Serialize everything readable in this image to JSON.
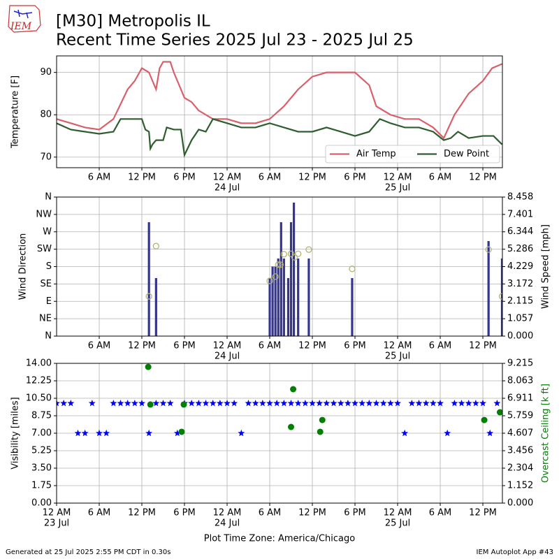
{
  "header": {
    "logo": "IEM",
    "title": "[M30] Metropolis  IL",
    "subtitle": "Recent Time Series 2025 Jul 23 - 2025 Jul 25"
  },
  "chart_data": [
    {
      "type": "line",
      "ylabel": "Temperature [F]",
      "xlim": [
        0,
        62.75
      ],
      "ylim": [
        67.5,
        93.9
      ],
      "yticks": [
        70,
        80,
        90
      ],
      "grid": true,
      "legend": "lower right",
      "xticks": [
        {
          "value": 6,
          "label": "6 AM"
        },
        {
          "value": 12,
          "label": "12 PM"
        },
        {
          "value": 18,
          "label": "6 PM"
        },
        {
          "value": 24,
          "label": "12 AM"
        },
        {
          "value": 30,
          "label": "6 AM"
        },
        {
          "value": 36,
          "label": "12 PM"
        },
        {
          "value": 42,
          "label": "6 PM"
        },
        {
          "value": 48,
          "label": "12 AM"
        },
        {
          "value": 54,
          "label": "6 AM"
        },
        {
          "value": 60,
          "label": "12 PM"
        }
      ],
      "xdates": [
        {
          "value": 24,
          "label": "24 Jul"
        },
        {
          "value": 48,
          "label": "25 Jul"
        }
      ],
      "series": [
        {
          "name": "Air Temp",
          "color": "#d9606a",
          "x": [
            0,
            2,
            4,
            6,
            8,
            10,
            11,
            12,
            13,
            13.5,
            14,
            14.5,
            15,
            16,
            16.5,
            17,
            18,
            19,
            20,
            22,
            24,
            26,
            28,
            30,
            32,
            34,
            36,
            38,
            40,
            42,
            44,
            45,
            47,
            49,
            51,
            53,
            54.5,
            56,
            58,
            60,
            61.3,
            62.7
          ],
          "values": [
            79,
            78,
            77,
            76.5,
            79,
            86,
            88,
            91,
            90,
            88,
            86,
            91,
            92.5,
            92.5,
            90,
            88,
            84,
            83,
            81,
            79,
            79,
            78,
            78,
            79,
            82,
            86,
            89,
            90,
            90,
            90,
            87,
            82,
            80,
            79,
            79,
            77,
            74.5,
            80,
            85,
            88,
            91,
            92
          ]
        },
        {
          "name": "Dew Point",
          "color": "#2e5e2e",
          "x": [
            0,
            2,
            4,
            6,
            8,
            9,
            12,
            12.5,
            13,
            13.2,
            13.5,
            14,
            15,
            15.5,
            16.5,
            17.5,
            18,
            19,
            20,
            21,
            22,
            24,
            26,
            28,
            30,
            32,
            34,
            36,
            38,
            40,
            42,
            44,
            45.5,
            47,
            49,
            51,
            53,
            54.5,
            55.5,
            56.5,
            58,
            60,
            61.5,
            62.7
          ],
          "values": [
            78,
            76.5,
            76,
            75.5,
            76,
            79,
            79,
            76.5,
            76,
            72,
            73,
            74,
            74,
            77,
            76.5,
            76.5,
            70.5,
            74,
            76.5,
            76,
            79,
            78,
            77,
            77,
            78,
            77,
            76,
            76,
            77,
            76,
            75,
            76,
            79,
            78,
            77,
            77,
            76,
            74,
            74.5,
            76,
            74.5,
            75,
            75,
            73
          ]
        }
      ]
    },
    {
      "type": "wind",
      "ylabel": "Wind Direction",
      "y2label": "Wind Speed [mph]",
      "xlim": [
        0,
        62.75
      ],
      "ylim": [
        0,
        360
      ],
      "y2lim": [
        0,
        8.458
      ],
      "grid": true,
      "yticks": [
        {
          "value": 0,
          "label": "N"
        },
        {
          "value": 45,
          "label": "NE"
        },
        {
          "value": 90,
          "label": "E"
        },
        {
          "value": 135,
          "label": "SE"
        },
        {
          "value": 180,
          "label": "S"
        },
        {
          "value": 225,
          "label": "SW"
        },
        {
          "value": 270,
          "label": "W"
        },
        {
          "value": 315,
          "label": "NW"
        },
        {
          "value": 360,
          "label": "N"
        }
      ],
      "y2ticks": [
        {
          "value": 0,
          "label": "0.000"
        },
        1.057,
        2.115,
        3.172,
        4.229,
        5.286,
        6.344,
        7.401,
        8.458
      ],
      "xticks": [
        {
          "value": 6,
          "label": "6 AM"
        },
        {
          "value": 12,
          "label": "12 PM"
        },
        {
          "value": 18,
          "label": "6 PM"
        },
        {
          "value": 24,
          "label": "12 AM"
        },
        {
          "value": 30,
          "label": "6 AM"
        },
        {
          "value": 36,
          "label": "12 PM"
        },
        {
          "value": 42,
          "label": "6 PM"
        },
        {
          "value": 48,
          "label": "12 AM"
        },
        {
          "value": 54,
          "label": "6 AM"
        },
        {
          "value": 60,
          "label": "12 PM"
        }
      ],
      "xdates": [
        {
          "value": 24,
          "label": "24 Jul"
        },
        {
          "value": 48,
          "label": "25 Jul"
        }
      ],
      "series": [
        {
          "type": "bar",
          "axis": "y2",
          "color": "#35358f",
          "x": [
            13,
            14,
            30,
            30.4,
            30.8,
            31.2,
            31.6,
            32,
            32.6,
            33,
            33.4,
            34,
            35.5,
            41.6,
            60.8,
            62.7
          ],
          "values": [
            6.93,
            3.53,
            3.53,
            4.23,
            4.23,
            4.72,
            6.93,
            4.72,
            3.53,
            6.93,
            8.12,
            4.72,
            4.72,
            3.53,
            5.78,
            4.72
          ]
        },
        {
          "type": "scatter",
          "marker": "ring",
          "color": "#b5b576",
          "x": [
            13,
            14,
            30,
            30.8,
            31.2,
            31.5,
            32,
            33,
            33.5,
            34,
            35.5,
            41.6,
            60.8,
            62.7
          ],
          "values": [
            103,
            233,
            143,
            154,
            185,
            185,
            212,
            213,
            204,
            213,
            224,
            174,
            224,
            103
          ]
        }
      ]
    },
    {
      "type": "scatter",
      "ylabel": "Visibility [miles]",
      "y2label": "Overcast Ceiling [k ft]",
      "xlabel": "Plot Time Zone: America/Chicago",
      "xlim": [
        0,
        62.75
      ],
      "ylim": [
        0,
        14
      ],
      "y2lim": [
        0,
        9.215
      ],
      "grid": true,
      "yticks": [
        {
          "value": 0,
          "label": "0.00"
        },
        1.75,
        {
          "value": 3.5,
          "label": "3.50"
        },
        5.25,
        {
          "value": 7,
          "label": "7.00"
        },
        8.75,
        {
          "value": 10.5,
          "label": "10.50"
        },
        12.25,
        {
          "value": 14,
          "label": "14.00"
        }
      ],
      "y2ticks": [
        {
          "value": 0,
          "label": "0.000"
        },
        1.152,
        2.304,
        3.456,
        4.607,
        5.759,
        6.911,
        8.063,
        9.215
      ],
      "xticks": [
        {
          "value": 0,
          "label": "12 AM"
        },
        {
          "value": 6,
          "label": "6 AM"
        },
        {
          "value": 12,
          "label": "12 PM"
        },
        {
          "value": 18,
          "label": "6 PM"
        },
        {
          "value": 24,
          "label": "12 AM"
        },
        {
          "value": 30,
          "label": "6 AM"
        },
        {
          "value": 36,
          "label": "12 PM"
        },
        {
          "value": 42,
          "label": "6 PM"
        },
        {
          "value": 48,
          "label": "12 AM"
        },
        {
          "value": 54,
          "label": "6 AM"
        },
        {
          "value": 60,
          "label": "12 PM"
        }
      ],
      "xdates": [
        {
          "value": 0,
          "label": "23 Jul"
        },
        {
          "value": 24,
          "label": "24 Jul"
        },
        {
          "value": 48,
          "label": "25 Jul"
        }
      ],
      "series": [
        {
          "type": "scatter",
          "marker": "star",
          "color": "#0000ff",
          "x": [
            0,
            1,
            2,
            3,
            4,
            5,
            6,
            7,
            8,
            9,
            10,
            11,
            12,
            13,
            14,
            15,
            16,
            17,
            18,
            19,
            20,
            21,
            22,
            23,
            24,
            25,
            26,
            27,
            28,
            29,
            30,
            31,
            32,
            33,
            34,
            35,
            36,
            37,
            38,
            39,
            40,
            41,
            42,
            43,
            44,
            45,
            46,
            47,
            48,
            49,
            50,
            51,
            52,
            53,
            54,
            55,
            56,
            57,
            58,
            59,
            60,
            61,
            62
          ],
          "values": [
            10,
            10,
            10,
            7,
            7,
            10,
            7,
            7,
            10,
            10,
            10,
            10,
            10,
            7,
            10,
            10,
            10,
            7,
            10,
            10,
            10,
            10,
            10,
            10,
            10,
            10,
            7,
            10,
            10,
            10,
            10,
            10,
            10,
            10,
            10,
            10,
            10,
            10,
            10,
            10,
            10,
            10,
            10,
            10,
            10,
            10,
            10,
            10,
            10,
            7,
            10,
            10,
            10,
            10,
            10,
            7,
            10,
            10,
            10,
            10,
            10,
            7,
            10
          ]
        },
        {
          "type": "scatter",
          "marker": "dot",
          "axis": "y2",
          "color": "#008000",
          "x": [
            12.9,
            13.2,
            17.6,
            17.9,
            33,
            33.3,
            37.1,
            37.4,
            60.2,
            62.4
          ],
          "values": [
            8.98,
            6.5,
            4.7,
            6.5,
            5.02,
            7.51,
            4.7,
            5.48,
            5.48,
            5.99
          ]
        }
      ]
    }
  ],
  "footer": {
    "left": "Generated at 25 Jul 2025 2:55 PM CDT in 0.30s",
    "right": "IEM Autoplot App #43"
  }
}
